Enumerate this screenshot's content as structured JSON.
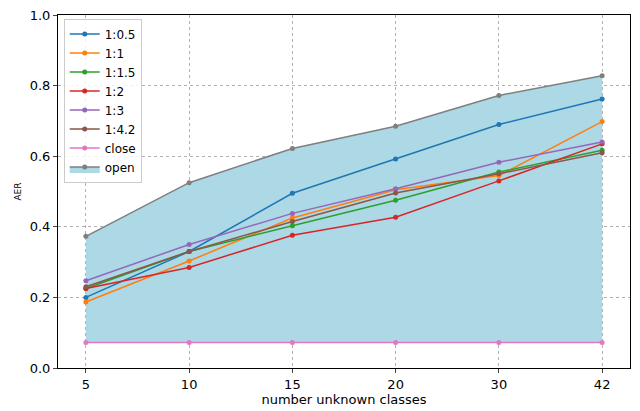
{
  "chart_data": {
    "type": "line",
    "x_label": "number unknown classes",
    "y_label": "AER",
    "categories": [
      "5",
      "10",
      "15",
      "20",
      "30",
      "42"
    ],
    "series": [
      {
        "name": "1:0.5",
        "color": "#1f77b4",
        "values": [
          0.2,
          0.33,
          0.495,
          0.592,
          0.69,
          0.762
        ]
      },
      {
        "name": "1:1",
        "color": "#ff7f0e",
        "values": [
          0.187,
          0.303,
          0.425,
          0.505,
          0.545,
          0.698
        ]
      },
      {
        "name": "1:1.5",
        "color": "#2ca02c",
        "values": [
          0.225,
          0.33,
          0.403,
          0.475,
          0.555,
          0.617
        ]
      },
      {
        "name": "1:2",
        "color": "#d62728",
        "values": [
          0.225,
          0.285,
          0.376,
          0.427,
          0.53,
          0.635
        ]
      },
      {
        "name": "1:3",
        "color": "#9467bd",
        "values": [
          0.247,
          0.35,
          0.438,
          0.508,
          0.583,
          0.64
        ]
      },
      {
        "name": "1:4.2",
        "color": "#8c564b",
        "values": [
          0.23,
          0.33,
          0.415,
          0.496,
          0.55,
          0.61
        ]
      },
      {
        "name": "close",
        "color": "#e377c2",
        "values": [
          0.072,
          0.072,
          0.072,
          0.072,
          0.072,
          0.072
        ]
      },
      {
        "name": "open",
        "color": "#7f7f7f",
        "values": [
          0.373,
          0.525,
          0.622,
          0.685,
          0.772,
          0.828
        ]
      }
    ],
    "ylim": [
      0,
      1
    ],
    "yticks": [
      {
        "value": 0,
        "label": "0.0"
      },
      0.2,
      0.4,
      0.6,
      0.8,
      {
        "value": 1,
        "label": "1.0"
      }
    ],
    "grid": true,
    "legend": "upper left",
    "marker": "circle"
  }
}
